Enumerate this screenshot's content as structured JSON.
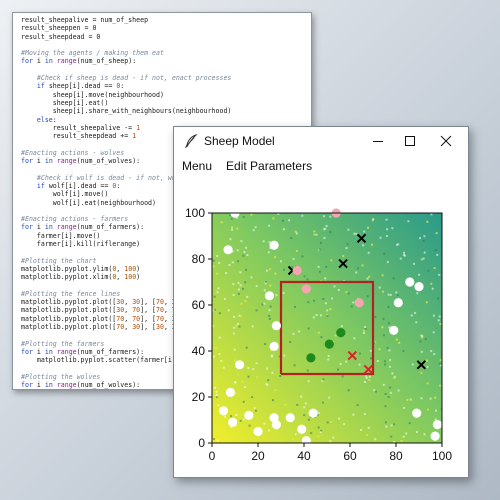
{
  "editor": {
    "lines": [
      [
        {
          "t": "result_sheepalive = num_of_sheep",
          "c": "plain"
        }
      ],
      [
        {
          "t": "result_sheeppen = 0",
          "c": "plain"
        }
      ],
      [
        {
          "t": "result_sheepdead = 0",
          "c": "plain"
        }
      ],
      [],
      [
        {
          "t": "#Moving the agents / making them eat",
          "c": "comment"
        }
      ],
      [
        {
          "t": "for",
          "c": "kw"
        },
        {
          "t": " i ",
          "c": "plain"
        },
        {
          "t": "in",
          "c": "kw"
        },
        {
          "t": " ",
          "c": "plain"
        },
        {
          "t": "range",
          "c": "fn"
        },
        {
          "t": "(num_of_sheep):",
          "c": "plain"
        }
      ],
      [],
      [
        {
          "t": "    #Check if sheep is dead - if not, enact processes",
          "c": "comment"
        }
      ],
      [
        {
          "t": "    ",
          "c": "plain"
        },
        {
          "t": "if",
          "c": "kw"
        },
        {
          "t": " sheep[i].dead == ",
          "c": "plain"
        },
        {
          "t": "0",
          "c": "num"
        },
        {
          "t": ":",
          "c": "plain"
        }
      ],
      [
        {
          "t": "        sheep[i].move(neighbourhood)",
          "c": "plain"
        }
      ],
      [
        {
          "t": "        sheep[i].eat()",
          "c": "plain"
        }
      ],
      [
        {
          "t": "        sheep[i].share_with_neighbours(neighbourhood)",
          "c": "plain"
        }
      ],
      [
        {
          "t": "    ",
          "c": "plain"
        },
        {
          "t": "else",
          "c": "kw"
        },
        {
          "t": ":",
          "c": "plain"
        }
      ],
      [
        {
          "t": "        result_sheepalive -= ",
          "c": "plain"
        },
        {
          "t": "1",
          "c": "num"
        }
      ],
      [
        {
          "t": "        result_sheepdead += ",
          "c": "plain"
        },
        {
          "t": "1",
          "c": "num"
        }
      ],
      [],
      [
        {
          "t": "#Enacting actions - wolves",
          "c": "comment"
        }
      ],
      [
        {
          "t": "for",
          "c": "kw"
        },
        {
          "t": " i ",
          "c": "plain"
        },
        {
          "t": "in",
          "c": "kw"
        },
        {
          "t": " ",
          "c": "plain"
        },
        {
          "t": "range",
          "c": "fn"
        },
        {
          "t": "(num_of_wolves):",
          "c": "plain"
        }
      ],
      [],
      [
        {
          "t": "    #Check if wolf is dead - if not, wh",
          "c": "comment"
        }
      ],
      [
        {
          "t": "    ",
          "c": "plain"
        },
        {
          "t": "if",
          "c": "kw"
        },
        {
          "t": " wolf[i].dead == ",
          "c": "plain"
        },
        {
          "t": "0",
          "c": "num"
        },
        {
          "t": ":",
          "c": "plain"
        }
      ],
      [
        {
          "t": "        wolf[i].move()",
          "c": "plain"
        }
      ],
      [
        {
          "t": "        wolf[i].eat(neighbourhood)",
          "c": "plain"
        }
      ],
      [],
      [
        {
          "t": "#Enacting actions - farmers",
          "c": "comment"
        }
      ],
      [
        {
          "t": "for",
          "c": "kw"
        },
        {
          "t": " i ",
          "c": "plain"
        },
        {
          "t": "in",
          "c": "kw"
        },
        {
          "t": " ",
          "c": "plain"
        },
        {
          "t": "range",
          "c": "fn"
        },
        {
          "t": "(num_of_farmers):",
          "c": "plain"
        }
      ],
      [
        {
          "t": "    farmer[i].move()",
          "c": "plain"
        }
      ],
      [
        {
          "t": "    farmer[i].kill(riflerange)",
          "c": "plain"
        }
      ],
      [],
      [
        {
          "t": "#Plotting the chart",
          "c": "comment"
        }
      ],
      [
        {
          "t": "matplotlib.pyplot.ylim(",
          "c": "plain"
        },
        {
          "t": "0",
          "c": "num"
        },
        {
          "t": ", ",
          "c": "plain"
        },
        {
          "t": "100",
          "c": "num"
        },
        {
          "t": ")",
          "c": "plain"
        }
      ],
      [
        {
          "t": "matplotlib.pyplot.xlim(",
          "c": "plain"
        },
        {
          "t": "0",
          "c": "num"
        },
        {
          "t": ", ",
          "c": "plain"
        },
        {
          "t": "100",
          "c": "num"
        },
        {
          "t": ")",
          "c": "plain"
        }
      ],
      [],
      [
        {
          "t": "#Plotting the fence lines",
          "c": "comment"
        }
      ],
      [
        {
          "t": "matplotlib.pyplot.plot([",
          "c": "plain"
        },
        {
          "t": "30",
          "c": "num"
        },
        {
          "t": ", ",
          "c": "plain"
        },
        {
          "t": "30",
          "c": "num"
        },
        {
          "t": "], [",
          "c": "plain"
        },
        {
          "t": "70",
          "c": "num"
        },
        {
          "t": ", 3",
          "c": "plain"
        }
      ],
      [
        {
          "t": "matplotlib.pyplot.plot([",
          "c": "plain"
        },
        {
          "t": "30",
          "c": "num"
        },
        {
          "t": ", ",
          "c": "plain"
        },
        {
          "t": "70",
          "c": "num"
        },
        {
          "t": "], [",
          "c": "plain"
        },
        {
          "t": "70",
          "c": "num"
        },
        {
          "t": ", 7",
          "c": "plain"
        }
      ],
      [
        {
          "t": "matplotlib.pyplot.plot([",
          "c": "plain"
        },
        {
          "t": "70",
          "c": "num"
        },
        {
          "t": ", ",
          "c": "plain"
        },
        {
          "t": "70",
          "c": "num"
        },
        {
          "t": "], [",
          "c": "plain"
        },
        {
          "t": "70",
          "c": "num"
        },
        {
          "t": ", 3",
          "c": "plain"
        }
      ],
      [
        {
          "t": "matplotlib.pyplot.plot([",
          "c": "plain"
        },
        {
          "t": "70",
          "c": "num"
        },
        {
          "t": ", ",
          "c": "plain"
        },
        {
          "t": "30",
          "c": "num"
        },
        {
          "t": "], [",
          "c": "plain"
        },
        {
          "t": "30",
          "c": "num"
        },
        {
          "t": ", 3",
          "c": "plain"
        }
      ],
      [],
      [
        {
          "t": "#Plotting the farmers",
          "c": "comment"
        }
      ],
      [
        {
          "t": "for",
          "c": "kw"
        },
        {
          "t": " i ",
          "c": "plain"
        },
        {
          "t": "in",
          "c": "kw"
        },
        {
          "t": " ",
          "c": "plain"
        },
        {
          "t": "range",
          "c": "fn"
        },
        {
          "t": "(num_of_farmers):",
          "c": "plain"
        }
      ],
      [
        {
          "t": "    matplotlib.pyplot.scatter(farmer[i",
          "c": "plain"
        }
      ],
      [],
      [
        {
          "t": "#Plotting the wolves",
          "c": "comment"
        }
      ],
      [
        {
          "t": "for",
          "c": "kw"
        },
        {
          "t": " i ",
          "c": "plain"
        },
        {
          "t": "in",
          "c": "kw"
        },
        {
          "t": " ",
          "c": "plain"
        },
        {
          "t": "range",
          "c": "fn"
        },
        {
          "t": "(num_of_wolves):",
          "c": "plain"
        }
      ]
    ]
  },
  "window": {
    "title": "Sheep Model",
    "icon": "feather-icon",
    "controls": {
      "minimize": "—",
      "maximize": "☐",
      "close": "✕"
    }
  },
  "menu": {
    "items": [
      {
        "label": "Menu"
      },
      {
        "label": "Edit Parameters"
      }
    ]
  },
  "colors": {
    "fence": "#b22222",
    "farmer": "#1e8a1e",
    "wolf_alive": "#000000",
    "wolf_dead": "#d62728",
    "sheep_alive": "#ffffff",
    "sheep_pen": "#f4a6b0",
    "env_low": "#2a9a8a",
    "env_mid": "#7cc862",
    "env_high": "#f2ee2a"
  },
  "chart_data": {
    "type": "scatter",
    "xlim": [
      0,
      100
    ],
    "ylim": [
      0,
      100
    ],
    "xticks": [
      0,
      20,
      40,
      60,
      80,
      100
    ],
    "yticks": [
      0,
      20,
      40,
      60,
      80,
      100
    ],
    "grid": false,
    "background": "environment-raster",
    "fence": [
      [
        30,
        30
      ],
      [
        70,
        30
      ],
      [
        70,
        70
      ],
      [
        30,
        70
      ],
      [
        30,
        30
      ]
    ],
    "series": [
      {
        "kind": "farmer",
        "marker": "circle",
        "points": [
          [
            43,
            37
          ],
          [
            51,
            43
          ],
          [
            56,
            48
          ]
        ]
      },
      {
        "kind": "wolf",
        "marker": "x",
        "points": [
          [
            35,
            75
          ],
          [
            57,
            78
          ],
          [
            65,
            89
          ],
          [
            91,
            34
          ]
        ]
      },
      {
        "kind": "wolf-dead",
        "marker": "x",
        "points": [
          [
            61,
            38
          ],
          [
            68,
            32
          ]
        ]
      },
      {
        "kind": "sheep-pen",
        "marker": "circle",
        "points": [
          [
            41,
            67
          ],
          [
            64,
            61
          ],
          [
            54,
            100
          ],
          [
            37,
            75
          ]
        ]
      },
      {
        "kind": "sheep",
        "marker": "circle",
        "points": [
          [
            10,
            100
          ],
          [
            7,
            84
          ],
          [
            27,
            86
          ],
          [
            25,
            64
          ],
          [
            28,
            51
          ],
          [
            27,
            42
          ],
          [
            86,
            70
          ],
          [
            90,
            68
          ],
          [
            81,
            61
          ],
          [
            79,
            49
          ],
          [
            12,
            34
          ],
          [
            8,
            22
          ],
          [
            5,
            14
          ],
          [
            9,
            9
          ],
          [
            16,
            12
          ],
          [
            20,
            5
          ],
          [
            27,
            11
          ],
          [
            28,
            8
          ],
          [
            34,
            11
          ],
          [
            39,
            6
          ],
          [
            44,
            13
          ],
          [
            41,
            1
          ],
          [
            89,
            13
          ],
          [
            97,
            3
          ],
          [
            98,
            8
          ]
        ]
      }
    ]
  }
}
